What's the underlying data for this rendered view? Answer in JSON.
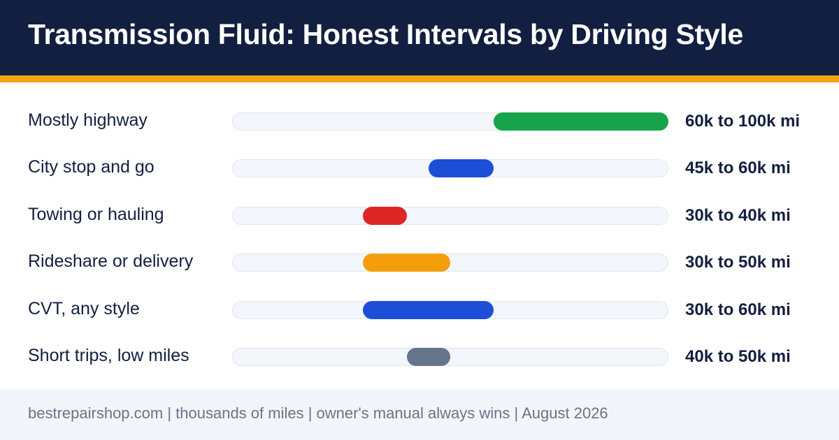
{
  "header": {
    "title": "Transmission Fluid: Honest Intervals by Driving Style"
  },
  "footer": {
    "text": "bestrepairshop.com | thousands of miles | owner's manual always wins | August 2026"
  },
  "colors": {
    "header_bg": "#131f40",
    "accent_stripe": "#f5a312",
    "track": "#f3f6fa"
  },
  "chart_data": {
    "type": "bar",
    "subtype": "range",
    "title": "Transmission Fluid: Honest Intervals by Driving Style",
    "unit": "thousands of miles",
    "xlim": [
      0,
      100
    ],
    "grid": false,
    "legend": "none",
    "rows": [
      {
        "label": "Mostly highway",
        "low": 60,
        "high": 100,
        "range_label": "60k to 100k mi",
        "color": "#16a34a"
      },
      {
        "label": "City stop and go",
        "low": 45,
        "high": 60,
        "range_label": "45k to 60k mi",
        "color": "#1d4ed8"
      },
      {
        "label": "Towing or hauling",
        "low": 30,
        "high": 40,
        "range_label": "30k to 40k mi",
        "color": "#dc2626"
      },
      {
        "label": "Rideshare or delivery",
        "low": 30,
        "high": 50,
        "range_label": "30k to 50k mi",
        "color": "#f59e0b"
      },
      {
        "label": "CVT, any style",
        "low": 30,
        "high": 60,
        "range_label": "30k to 60k mi",
        "color": "#1d4ed8"
      },
      {
        "label": "Short trips, low miles",
        "low": 40,
        "high": 50,
        "range_label": "40k to 50k mi",
        "color": "#64748b"
      }
    ]
  }
}
